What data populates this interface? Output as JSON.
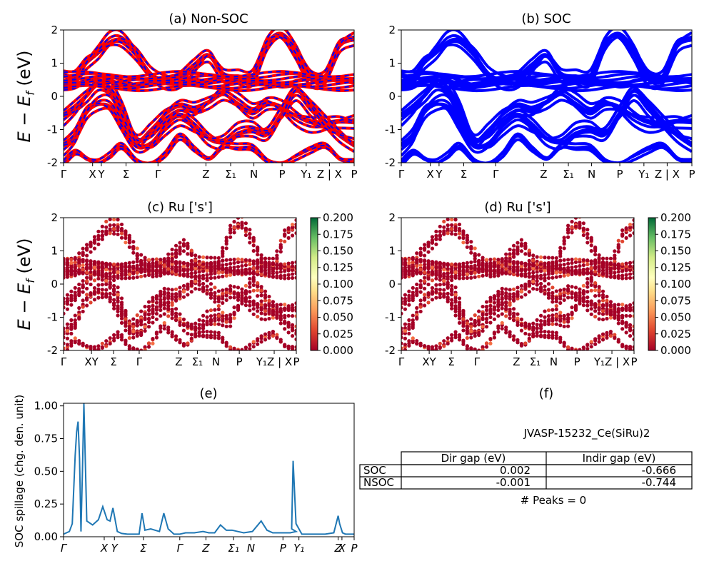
{
  "panel_titles": {
    "a": "(a) Non-SOC",
    "b": "(b) SOC",
    "c": "(c)  Ru ['s']",
    "d": "(d) Ru ['s']",
    "e": "(e)",
    "f": "(f)"
  },
  "band_ylabel": "E − E_f (eV)",
  "colorbar_ticks": [
    "0.200",
    "0.175",
    "0.150",
    "0.125",
    "0.100",
    "0.075",
    "0.050",
    "0.025",
    "0.000"
  ],
  "kpath_labels": [
    "Γ",
    "X",
    "Y",
    "Σ",
    "Γ",
    "Z",
    "Σ₁",
    "N",
    "P",
    "Y₁",
    "Z | X",
    "P"
  ],
  "kpath_labels_e": [
    "Γ",
    "X",
    "Y",
    "Σ",
    "Γ",
    "Z",
    "Σ₁",
    "N",
    "P",
    "Y₁",
    "Z",
    "X",
    "P"
  ],
  "colors": {
    "nonsoc": "#ff0000",
    "soc": "#0000ff",
    "spillage_line": "#1f77b4"
  },
  "chart_data": [
    {
      "type": "line",
      "title": "(a) Non-SOC",
      "ylabel": "E − E_f (eV)",
      "ylim": [
        -2,
        2
      ],
      "yticks": [
        -2,
        -1,
        0,
        1,
        2
      ],
      "xticks": [
        "Γ",
        "X",
        "Y",
        "Σ",
        "Γ",
        "Z",
        "Σ₁",
        "N",
        "P",
        "Y₁",
        "Z | X",
        "P"
      ],
      "series": [
        {
          "x": [
            0,
            0.04,
            0.08,
            0.12,
            0.16,
            0.2,
            0.25,
            0.3,
            0.35,
            0.4,
            0.45,
            0.5,
            0.55,
            0.6,
            0.65,
            0.7,
            0.75,
            0.8,
            0.85,
            0.9,
            0.95,
            1
          ],
          "y": [
            -0.6,
            -0.35,
            0.0,
            0.35,
            0.15,
            -0.4,
            -1.3,
            -1.0,
            -0.55,
            -0.3,
            -0.4,
            -0.2,
            0.05,
            -0.2,
            -0.45,
            -0.2,
            -0.3,
            -0.6,
            -0.8,
            -0.85,
            -0.78,
            -0.8
          ]
        },
        {
          "x": [
            0,
            0.04,
            0.08,
            0.12,
            0.16,
            0.2,
            0.25,
            0.3,
            0.35,
            0.4,
            0.45,
            0.5,
            0.55,
            0.6,
            0.65,
            0.7,
            0.75,
            0.8,
            0.85,
            0.9,
            0.95,
            1
          ],
          "y": [
            0.6,
            0.55,
            1.0,
            1.3,
            1.65,
            1.7,
            1.3,
            0.7,
            0.5,
            0.55,
            0.9,
            1.2,
            0.6,
            0.5,
            0.55,
            1.6,
            1.9,
            1.4,
            0.6,
            0.55,
            1.5,
            1.7
          ]
        },
        {
          "x": [
            0,
            0.04,
            0.08,
            0.12,
            0.16,
            0.2,
            0.25,
            0.3,
            0.35,
            0.4,
            0.45,
            0.5,
            0.55,
            0.6,
            0.65,
            0.7,
            0.75,
            0.8,
            0.85,
            0.9,
            0.95,
            1
          ],
          "y": [
            -1.5,
            -1.2,
            -0.5,
            -0.25,
            -0.3,
            -0.8,
            -1.45,
            -1.4,
            -0.9,
            -0.6,
            -0.9,
            -1.3,
            -1.4,
            -1.1,
            -1.0,
            -1.1,
            -0.5,
            0.15,
            -0.3,
            -0.8,
            -1.2,
            -1.5
          ]
        },
        {
          "x": [
            0,
            0.04,
            0.08,
            0.12,
            0.16,
            0.2,
            0.25,
            0.3,
            0.35,
            0.4,
            0.45,
            0.5,
            0.55,
            0.6,
            0.65,
            0.7,
            0.75,
            0.8,
            0.85,
            0.9,
            0.95,
            1
          ],
          "y": [
            0.3,
            0.3,
            0.45,
            0.5,
            0.48,
            0.4,
            0.35,
            0.45,
            0.55,
            0.5,
            0.45,
            0.4,
            0.45,
            0.5,
            0.45,
            0.4,
            0.35,
            0.45,
            0.5,
            0.5,
            0.45,
            0.4
          ]
        },
        {
          "x": [
            0,
            0.04,
            0.08,
            0.12,
            0.16,
            0.2,
            0.25,
            0.3,
            0.35,
            0.4,
            0.45,
            0.5,
            0.55,
            0.6,
            0.65,
            0.7,
            0.75,
            0.8,
            0.85,
            0.9,
            0.95,
            1
          ],
          "y": [
            -2.0,
            -1.7,
            -1.9,
            -2.0,
            -1.8,
            -1.5,
            -1.9,
            -2.0,
            -1.7,
            -1.2,
            -1.6,
            -1.9,
            -1.55,
            -1.55,
            -1.55,
            -1.9,
            -2.0,
            -1.8,
            -1.6,
            -1.5,
            -1.9,
            -2.0
          ]
        }
      ]
    },
    {
      "type": "line",
      "title": "(b) SOC",
      "ylim": [
        -2,
        2
      ],
      "yticks": [
        -2,
        -1,
        0,
        1,
        2
      ],
      "xticks": [
        "Γ",
        "X",
        "Y",
        "Σ",
        "Γ",
        "Z",
        "Σ₁",
        "N",
        "P",
        "Y₁",
        "Z | X",
        "P"
      ]
    },
    {
      "type": "scatter",
      "title": "(c)  Ru ['s']",
      "ylabel": "E − E_f (eV)",
      "ylim": [
        -2,
        2
      ],
      "colorbar": {
        "min": 0.0,
        "max": 0.2,
        "cmap": "RdYlGn"
      }
    },
    {
      "type": "scatter",
      "title": "(d) Ru ['s']",
      "ylim": [
        -2,
        2
      ],
      "colorbar": {
        "min": 0.0,
        "max": 0.2,
        "cmap": "RdYlGn"
      }
    },
    {
      "type": "line",
      "title": "(e)",
      "ylabel": "SOC spillage (chg. den. unit)",
      "ylim": [
        0,
        1.02
      ],
      "yticks": [
        0.0,
        0.25,
        0.5,
        0.75,
        1.0
      ],
      "xticks": [
        "Γ",
        "X",
        "Y",
        "Σ",
        "Γ",
        "Z",
        "Σ₁",
        "N",
        "P",
        "Y₁",
        "Z",
        "X",
        "P"
      ],
      "x": [
        0,
        0.02,
        0.03,
        0.04,
        0.045,
        0.05,
        0.055,
        0.06,
        0.065,
        0.07,
        0.08,
        0.1,
        0.12,
        0.135,
        0.15,
        0.16,
        0.17,
        0.185,
        0.2,
        0.22,
        0.26,
        0.27,
        0.28,
        0.3,
        0.33,
        0.345,
        0.36,
        0.37,
        0.38,
        0.4,
        0.42,
        0.45,
        0.48,
        0.5,
        0.52,
        0.54,
        0.56,
        0.58,
        0.6,
        0.62,
        0.65,
        0.68,
        0.7,
        0.71,
        0.72,
        0.74,
        0.76,
        0.78,
        0.8,
        0.785,
        0.79,
        0.8,
        0.81,
        0.82,
        0.84,
        0.86,
        0.9,
        0.93,
        0.945,
        0.95,
        0.96,
        0.97,
        0.98,
        0.99,
        1.0
      ],
      "y": [
        0.02,
        0.04,
        0.1,
        0.62,
        0.8,
        0.88,
        0.6,
        0.04,
        0.5,
        1.02,
        0.12,
        0.09,
        0.13,
        0.23,
        0.13,
        0.12,
        0.22,
        0.04,
        0.025,
        0.02,
        0.02,
        0.18,
        0.05,
        0.06,
        0.04,
        0.18,
        0.06,
        0.04,
        0.02,
        0.02,
        0.03,
        0.03,
        0.04,
        0.03,
        0.03,
        0.09,
        0.05,
        0.05,
        0.04,
        0.03,
        0.04,
        0.12,
        0.05,
        0.04,
        0.03,
        0.03,
        0.03,
        0.03,
        0.04,
        0.06,
        0.58,
        0.1,
        0.06,
        0.02,
        0.02,
        0.02,
        0.02,
        0.03,
        0.16,
        0.1,
        0.03,
        0.02,
        0.02,
        0.02,
        0.02
      ]
    },
    {
      "type": "table",
      "title": "(f)",
      "caption": "JVASP-15232_Ce(SiRu)2",
      "columns": [
        "",
        "Dir gap (eV)",
        "Indir gap (eV)"
      ],
      "rows": [
        [
          "SOC",
          "0.002",
          "-0.666"
        ],
        [
          "NSOC",
          "-0.001",
          "-0.744"
        ]
      ],
      "footer": "# Peaks = 0"
    }
  ],
  "table": {
    "caption": "JVASP-15232_Ce(SiRu)2",
    "headers": [
      "Dir gap (eV)",
      "Indir gap (eV)"
    ],
    "rows": [
      {
        "label": "SOC",
        "dir": "0.002",
        "indir": "-0.666"
      },
      {
        "label": "NSOC",
        "dir": "-0.001",
        "indir": "-0.744"
      }
    ],
    "footer": "# Peaks = 0"
  }
}
